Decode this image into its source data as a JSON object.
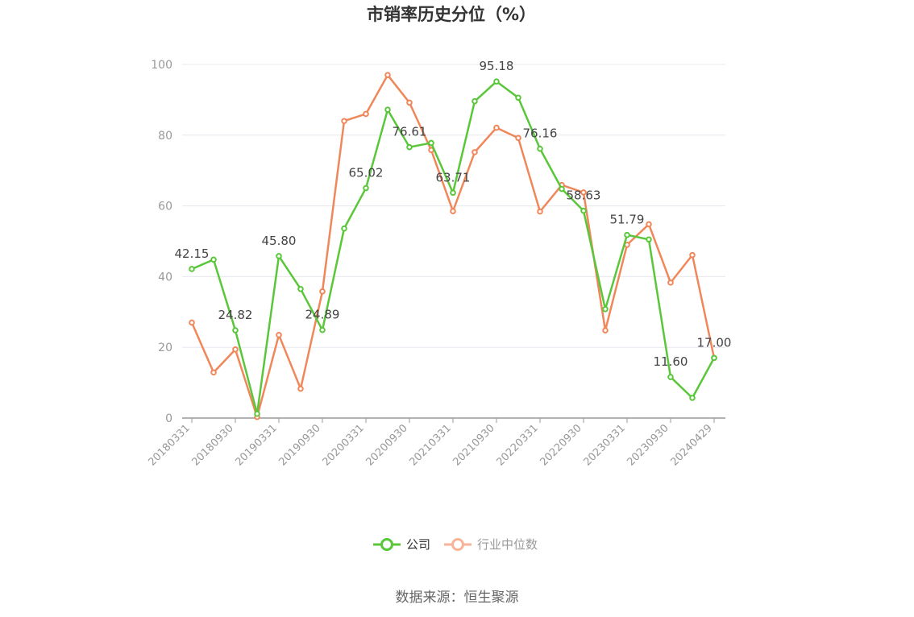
{
  "chart_data": {
    "type": "line",
    "title": "市销率历史分位（%）",
    "xlabel": "",
    "ylabel": "",
    "ylim": [
      0,
      100
    ],
    "y_ticks": [
      0,
      20,
      40,
      60,
      80,
      100
    ],
    "x": [
      "20180331",
      "20180630",
      "20180930",
      "20181231",
      "20190331",
      "20190630",
      "20190930",
      "20191231",
      "20200331",
      "20200630",
      "20200930",
      "20201231",
      "20210331",
      "20210630",
      "20210930",
      "20211231",
      "20220331",
      "20220630",
      "20220930",
      "20221231",
      "20230331",
      "20230630",
      "20230930",
      "20231231",
      "20240429"
    ],
    "x_tick_labels": [
      "20180331",
      "20180930",
      "20190331",
      "20190930",
      "20200331",
      "20200930",
      "20210331",
      "20210930",
      "20220331",
      "20220930",
      "20230331",
      "20230930",
      "20240429"
    ],
    "grid": true,
    "legend_position": "bottom-center",
    "series": [
      {
        "name": "公司",
        "color": "#5ac73b",
        "values": [
          42.15,
          44.8,
          24.82,
          1.2,
          45.8,
          36.5,
          24.89,
          53.6,
          65.02,
          87.2,
          76.61,
          77.8,
          63.71,
          89.6,
          95.18,
          90.6,
          76.16,
          64.8,
          58.63,
          30.8,
          51.79,
          50.5,
          11.6,
          5.7,
          17.0
        ],
        "labels": [
          "42.15",
          "",
          "24.82",
          "",
          "45.80",
          "",
          "24.89",
          "",
          "65.02",
          "",
          "76.61",
          "",
          "63.71",
          "",
          "95.18",
          "",
          "76.16",
          "",
          "58.63",
          "",
          "51.79",
          "",
          "11.60",
          "",
          "17.00"
        ]
      },
      {
        "name": "行业中位数",
        "color": "#f0875a",
        "values": [
          27.0,
          12.9,
          19.4,
          0.3,
          23.5,
          8.3,
          35.8,
          84.0,
          86.0,
          97.0,
          89.2,
          75.8,
          58.5,
          75.2,
          82.1,
          79.2,
          58.4,
          65.9,
          63.8,
          24.8,
          49.0,
          54.8,
          38.3,
          46.1,
          17.0
        ]
      }
    ]
  },
  "legend": {
    "company": "公司",
    "industry": "行业中位数"
  },
  "source": "数据来源：恒生聚源"
}
